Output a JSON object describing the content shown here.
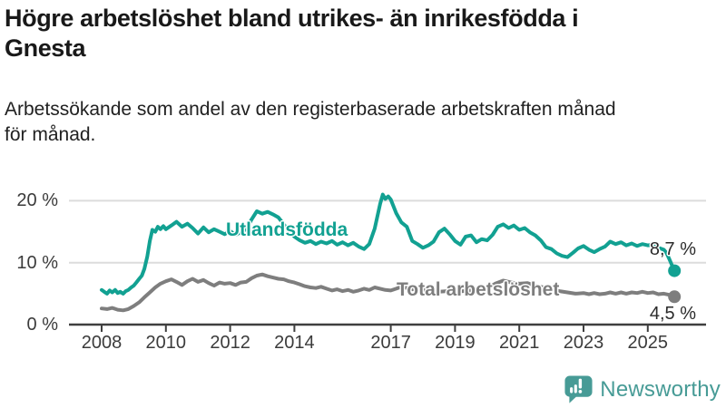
{
  "header": {
    "title": "Högre arbetslöshet bland utrikes- än inrikesfödda i Gnesta",
    "title_lines": [
      "Högre arbetslöshet bland utrikes- än inrikesfödda i",
      "Gnesta"
    ],
    "subtitle": "Arbetssökande som andel av den registerbaserade arbetskraften månad för månad.",
    "subtitle_lines": [
      "Arbetssökande som andel av den registerbaserade arbetskraften månad",
      "för månad."
    ]
  },
  "chart_data": {
    "type": "line",
    "title": "Högre arbetslöshet bland utrikes- än inrikesfödda i Gnesta",
    "subtitle": "Arbetssökande som andel av den registerbaserade arbetskraften månad för månad.",
    "xlabel": "",
    "ylabel": "",
    "x_unit": "year (monthly observations)",
    "xlim": [
      2008,
      2026
    ],
    "ylim": [
      0,
      22
    ],
    "grid": "horizontal",
    "legend_position": "inline-labels",
    "y_ticks": [
      {
        "value": 0,
        "label": "0 %"
      },
      {
        "value": 10,
        "label": "10 %"
      },
      {
        "value": 20,
        "label": "20 %"
      }
    ],
    "x_ticks": [
      {
        "value": 2008,
        "label": "2008"
      },
      {
        "value": 2010,
        "label": "2010"
      },
      {
        "value": 2012,
        "label": "2012"
      },
      {
        "value": 2014,
        "label": "2014"
      },
      {
        "value": 2017,
        "label": "2017"
      },
      {
        "value": 2019,
        "label": "2019"
      },
      {
        "value": 2021,
        "label": "2021"
      },
      {
        "value": 2023,
        "label": "2023"
      },
      {
        "value": 2025,
        "label": "2025"
      }
    ],
    "series": [
      {
        "name": "Utlandsfödda",
        "color": "#12a192",
        "end_value": 8.7,
        "end_label": "8,7 %",
        "points": [
          [
            2008.0,
            5.6
          ],
          [
            2008.08,
            5.3
          ],
          [
            2008.17,
            5.0
          ],
          [
            2008.25,
            5.5
          ],
          [
            2008.33,
            5.2
          ],
          [
            2008.42,
            5.6
          ],
          [
            2008.5,
            5.1
          ],
          [
            2008.58,
            5.3
          ],
          [
            2008.67,
            5.0
          ],
          [
            2008.75,
            5.4
          ],
          [
            2008.83,
            5.6
          ],
          [
            2008.92,
            6.0
          ],
          [
            2009.0,
            6.3
          ],
          [
            2009.08,
            6.8
          ],
          [
            2009.17,
            7.4
          ],
          [
            2009.25,
            7.9
          ],
          [
            2009.33,
            9.0
          ],
          [
            2009.42,
            11.0
          ],
          [
            2009.5,
            13.5
          ],
          [
            2009.58,
            15.3
          ],
          [
            2009.67,
            15.0
          ],
          [
            2009.75,
            15.8
          ],
          [
            2009.83,
            15.4
          ],
          [
            2009.92,
            15.9
          ],
          [
            2010.0,
            15.4
          ],
          [
            2010.17,
            16.0
          ],
          [
            2010.33,
            16.6
          ],
          [
            2010.5,
            15.8
          ],
          [
            2010.67,
            16.3
          ],
          [
            2010.83,
            15.6
          ],
          [
            2011.0,
            14.7
          ],
          [
            2011.17,
            15.7
          ],
          [
            2011.33,
            14.9
          ],
          [
            2011.5,
            15.4
          ],
          [
            2011.67,
            15.0
          ],
          [
            2011.83,
            14.6
          ],
          [
            2012.0,
            15.1
          ],
          [
            2012.17,
            14.5
          ],
          [
            2012.33,
            14.9
          ],
          [
            2012.5,
            15.4
          ],
          [
            2012.67,
            17.0
          ],
          [
            2012.83,
            18.3
          ],
          [
            2013.0,
            17.9
          ],
          [
            2013.17,
            18.2
          ],
          [
            2013.33,
            17.8
          ],
          [
            2013.5,
            17.3
          ],
          [
            2013.67,
            16.2
          ],
          [
            2013.83,
            15.0
          ],
          [
            2014.0,
            14.2
          ],
          [
            2014.17,
            13.6
          ],
          [
            2014.33,
            13.2
          ],
          [
            2014.5,
            13.5
          ],
          [
            2014.67,
            13.0
          ],
          [
            2014.83,
            13.4
          ],
          [
            2015.0,
            13.1
          ],
          [
            2015.17,
            13.5
          ],
          [
            2015.33,
            12.9
          ],
          [
            2015.5,
            13.3
          ],
          [
            2015.67,
            12.8
          ],
          [
            2015.83,
            13.2
          ],
          [
            2016.0,
            12.6
          ],
          [
            2016.17,
            12.2
          ],
          [
            2016.33,
            13.0
          ],
          [
            2016.5,
            15.5
          ],
          [
            2016.67,
            19.5
          ],
          [
            2016.75,
            21.0
          ],
          [
            2016.83,
            20.3
          ],
          [
            2016.92,
            20.7
          ],
          [
            2017.0,
            20.2
          ],
          [
            2017.17,
            18.0
          ],
          [
            2017.33,
            16.5
          ],
          [
            2017.5,
            15.8
          ],
          [
            2017.67,
            13.5
          ],
          [
            2017.83,
            13.0
          ],
          [
            2018.0,
            12.4
          ],
          [
            2018.17,
            12.8
          ],
          [
            2018.33,
            13.4
          ],
          [
            2018.5,
            14.9
          ],
          [
            2018.67,
            15.5
          ],
          [
            2018.83,
            14.6
          ],
          [
            2019.0,
            13.5
          ],
          [
            2019.17,
            12.9
          ],
          [
            2019.33,
            14.2
          ],
          [
            2019.5,
            14.4
          ],
          [
            2019.67,
            13.3
          ],
          [
            2019.83,
            13.8
          ],
          [
            2020.0,
            13.6
          ],
          [
            2020.17,
            14.5
          ],
          [
            2020.33,
            15.8
          ],
          [
            2020.5,
            16.2
          ],
          [
            2020.67,
            15.6
          ],
          [
            2020.83,
            16.0
          ],
          [
            2021.0,
            15.3
          ],
          [
            2021.17,
            15.6
          ],
          [
            2021.33,
            14.9
          ],
          [
            2021.5,
            14.4
          ],
          [
            2021.67,
            13.6
          ],
          [
            2021.83,
            12.5
          ],
          [
            2022.0,
            12.2
          ],
          [
            2022.17,
            11.5
          ],
          [
            2022.33,
            11.1
          ],
          [
            2022.5,
            10.9
          ],
          [
            2022.67,
            11.6
          ],
          [
            2022.83,
            12.3
          ],
          [
            2023.0,
            12.7
          ],
          [
            2023.17,
            12.1
          ],
          [
            2023.33,
            11.7
          ],
          [
            2023.5,
            12.2
          ],
          [
            2023.67,
            12.6
          ],
          [
            2023.83,
            13.4
          ],
          [
            2024.0,
            13.0
          ],
          [
            2024.17,
            13.3
          ],
          [
            2024.33,
            12.8
          ],
          [
            2024.5,
            13.1
          ],
          [
            2024.67,
            12.7
          ],
          [
            2024.83,
            13.0
          ],
          [
            2025.0,
            12.8
          ],
          [
            2025.17,
            12.9
          ],
          [
            2025.33,
            12.4
          ],
          [
            2025.5,
            12.1
          ],
          [
            2025.58,
            11.6
          ],
          [
            2025.67,
            10.6
          ],
          [
            2025.75,
            9.6
          ],
          [
            2025.83,
            8.7
          ]
        ]
      },
      {
        "name": "Total arbetslöshet",
        "color": "#7e7e7e",
        "end_value": 4.5,
        "end_label": "4,5 %",
        "points": [
          [
            2008.0,
            2.6
          ],
          [
            2008.17,
            2.5
          ],
          [
            2008.33,
            2.7
          ],
          [
            2008.5,
            2.4
          ],
          [
            2008.67,
            2.3
          ],
          [
            2008.83,
            2.5
          ],
          [
            2009.0,
            3.0
          ],
          [
            2009.17,
            3.6
          ],
          [
            2009.33,
            4.4
          ],
          [
            2009.5,
            5.2
          ],
          [
            2009.67,
            6.0
          ],
          [
            2009.83,
            6.6
          ],
          [
            2010.0,
            7.0
          ],
          [
            2010.17,
            7.3
          ],
          [
            2010.33,
            6.9
          ],
          [
            2010.5,
            6.4
          ],
          [
            2010.67,
            7.0
          ],
          [
            2010.83,
            7.4
          ],
          [
            2011.0,
            6.9
          ],
          [
            2011.17,
            7.2
          ],
          [
            2011.33,
            6.7
          ],
          [
            2011.5,
            6.3
          ],
          [
            2011.67,
            6.8
          ],
          [
            2011.83,
            6.6
          ],
          [
            2012.0,
            6.7
          ],
          [
            2012.17,
            6.4
          ],
          [
            2012.33,
            6.8
          ],
          [
            2012.5,
            6.9
          ],
          [
            2012.67,
            7.5
          ],
          [
            2012.83,
            7.9
          ],
          [
            2013.0,
            8.1
          ],
          [
            2013.17,
            7.8
          ],
          [
            2013.33,
            7.6
          ],
          [
            2013.5,
            7.4
          ],
          [
            2013.67,
            7.3
          ],
          [
            2013.83,
            7.0
          ],
          [
            2014.0,
            6.8
          ],
          [
            2014.17,
            6.5
          ],
          [
            2014.33,
            6.2
          ],
          [
            2014.5,
            6.0
          ],
          [
            2014.67,
            5.9
          ],
          [
            2014.83,
            6.1
          ],
          [
            2015.0,
            5.8
          ],
          [
            2015.17,
            5.5
          ],
          [
            2015.33,
            5.7
          ],
          [
            2015.5,
            5.4
          ],
          [
            2015.67,
            5.6
          ],
          [
            2015.83,
            5.3
          ],
          [
            2016.0,
            5.5
          ],
          [
            2016.17,
            5.8
          ],
          [
            2016.33,
            5.6
          ],
          [
            2016.5,
            6.0
          ],
          [
            2016.67,
            5.8
          ],
          [
            2016.83,
            5.6
          ],
          [
            2017.0,
            5.5
          ],
          [
            2017.17,
            5.8
          ],
          [
            2017.33,
            6.1
          ],
          [
            2017.5,
            5.9
          ],
          [
            2017.67,
            5.7
          ],
          [
            2017.83,
            5.8
          ],
          [
            2018.0,
            5.6
          ],
          [
            2018.25,
            5.4
          ],
          [
            2018.5,
            5.3
          ],
          [
            2018.75,
            5.4
          ],
          [
            2019.0,
            5.3
          ],
          [
            2019.25,
            5.4
          ],
          [
            2019.5,
            5.5
          ],
          [
            2019.75,
            5.6
          ],
          [
            2020.0,
            5.8
          ],
          [
            2020.25,
            6.6
          ],
          [
            2020.5,
            7.1
          ],
          [
            2020.75,
            6.8
          ],
          [
            2021.0,
            6.6
          ],
          [
            2021.25,
            6.7
          ],
          [
            2021.5,
            6.3
          ],
          [
            2021.75,
            6.0
          ],
          [
            2022.0,
            5.7
          ],
          [
            2022.25,
            5.4
          ],
          [
            2022.5,
            5.2
          ],
          [
            2022.75,
            5.0
          ],
          [
            2023.0,
            5.1
          ],
          [
            2023.17,
            4.9
          ],
          [
            2023.33,
            5.1
          ],
          [
            2023.5,
            4.9
          ],
          [
            2023.67,
            5.0
          ],
          [
            2023.83,
            5.2
          ],
          [
            2024.0,
            5.0
          ],
          [
            2024.17,
            5.2
          ],
          [
            2024.33,
            5.0
          ],
          [
            2024.5,
            5.2
          ],
          [
            2024.67,
            5.1
          ],
          [
            2024.83,
            5.3
          ],
          [
            2025.0,
            5.1
          ],
          [
            2025.17,
            5.2
          ],
          [
            2025.33,
            4.9
          ],
          [
            2025.5,
            5.0
          ],
          [
            2025.67,
            4.8
          ],
          [
            2025.83,
            4.5
          ]
        ]
      }
    ]
  },
  "footer": {
    "brand": "Newsworthy",
    "brand_color": "#479b96"
  }
}
